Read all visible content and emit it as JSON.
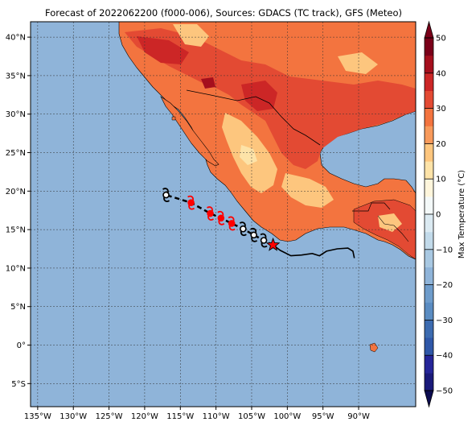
{
  "title": "Forecast of 2022062200 (f000-006), Sources: GDACS (TC track), GFS (Meteo)",
  "map": {
    "lon_range": [
      -136,
      -82
    ],
    "lat_range": [
      -8,
      42
    ],
    "lon_ticks": [
      {
        "value": -135,
        "label": "135°W"
      },
      {
        "value": -130,
        "label": "130°W"
      },
      {
        "value": -125,
        "label": "125°W"
      },
      {
        "value": -120,
        "label": "120°W"
      },
      {
        "value": -115,
        "label": "115°W"
      },
      {
        "value": -110,
        "label": "110°W"
      },
      {
        "value": -105,
        "label": "105°W"
      },
      {
        "value": -100,
        "label": "100°W"
      },
      {
        "value": -95,
        "label": "95°W"
      },
      {
        "value": -90,
        "label": "90°W"
      }
    ],
    "lat_ticks": [
      {
        "value": 40,
        "label": "40°N"
      },
      {
        "value": 35,
        "label": "35°N"
      },
      {
        "value": 30,
        "label": "30°N"
      },
      {
        "value": 25,
        "label": "25°N"
      },
      {
        "value": 20,
        "label": "20°N"
      },
      {
        "value": 15,
        "label": "15°N"
      },
      {
        "value": 10,
        "label": "10°N"
      },
      {
        "value": 5,
        "label": "5°N"
      },
      {
        "value": 0,
        "label": "0°"
      },
      {
        "value": -5,
        "label": "5°S"
      }
    ],
    "ocean_color": "#8fb4d9",
    "gridlines": true
  },
  "colorbar": {
    "label": "Max Temperature (°C)",
    "min": -50,
    "max": 50,
    "ticks": [
      {
        "value": 50,
        "label": "50"
      },
      {
        "value": 40,
        "label": "40"
      },
      {
        "value": 30,
        "label": "30"
      },
      {
        "value": 20,
        "label": "20"
      },
      {
        "value": 10,
        "label": "10"
      },
      {
        "value": 0,
        "label": "0"
      },
      {
        "value": -10,
        "label": "−10"
      },
      {
        "value": -20,
        "label": "−20"
      },
      {
        "value": -30,
        "label": "−30"
      },
      {
        "value": -40,
        "label": "−40"
      },
      {
        "value": -50,
        "label": "−50"
      }
    ],
    "bands": [
      {
        "from": -50,
        "to": -45,
        "color": "#1a1a7a"
      },
      {
        "from": -45,
        "to": -40,
        "color": "#252599"
      },
      {
        "from": -40,
        "to": -35,
        "color": "#2f57a8"
      },
      {
        "from": -35,
        "to": -30,
        "color": "#3c6bb0"
      },
      {
        "from": -30,
        "to": -25,
        "color": "#5a8cc2"
      },
      {
        "from": -25,
        "to": -20,
        "color": "#6e9ccb"
      },
      {
        "from": -20,
        "to": -15,
        "color": "#8fb4d9"
      },
      {
        "from": -15,
        "to": -10,
        "color": "#a8c8e2"
      },
      {
        "from": -10,
        "to": -5,
        "color": "#c2daea"
      },
      {
        "from": -5,
        "to": 0,
        "color": "#dbeaf2"
      },
      {
        "from": 0,
        "to": 5,
        "color": "#f4f9f9"
      },
      {
        "from": 5,
        "to": 10,
        "color": "#fff6dc"
      },
      {
        "from": 10,
        "to": 15,
        "color": "#fde3a8"
      },
      {
        "from": 15,
        "to": 20,
        "color": "#fdc67e"
      },
      {
        "from": 20,
        "to": 25,
        "color": "#f89a5b"
      },
      {
        "from": 25,
        "to": 30,
        "color": "#f3743f"
      },
      {
        "from": 30,
        "to": 35,
        "color": "#e34a33"
      },
      {
        "from": 35,
        "to": 40,
        "color": "#cc2626"
      },
      {
        "from": 40,
        "to": 45,
        "color": "#a50f1d"
      },
      {
        "from": 45,
        "to": 50,
        "color": "#7a0019"
      }
    ]
  },
  "colors": {
    "land_warm": "#f3743f",
    "land_hot": "#e34a33",
    "land_very_hot": "#cc2626",
    "land_extreme": "#a50f1d",
    "land_mild": "#fdc67e",
    "land_cool": "#fde3a8",
    "track_line": "#000000",
    "forecast_symbol": "#ff0000",
    "observed_symbol": "#000000",
    "current_position": "#ff0000"
  },
  "track": {
    "past_line": [
      [
        -102.0,
        13.0
      ],
      [
        -101.0,
        12.3
      ],
      [
        -99.5,
        11.6
      ],
      [
        -98.0,
        11.7
      ],
      [
        -96.5,
        11.9
      ],
      [
        -95.5,
        11.6
      ],
      [
        -94.5,
        12.2
      ],
      [
        -93.0,
        12.5
      ],
      [
        -91.5,
        12.6
      ],
      [
        -90.8,
        12.2
      ],
      [
        -90.6,
        11.3
      ]
    ],
    "forecast_points": [
      {
        "lon": -103.3,
        "lat": 13.6,
        "type": "observed"
      },
      {
        "lon": -104.7,
        "lat": 14.3,
        "type": "observed"
      },
      {
        "lon": -106.2,
        "lat": 15.1,
        "type": "observed"
      },
      {
        "lon": -107.8,
        "lat": 15.8,
        "type": "forecast"
      },
      {
        "lon": -109.3,
        "lat": 16.5,
        "type": "forecast"
      },
      {
        "lon": -110.8,
        "lat": 17.1,
        "type": "forecast"
      },
      {
        "lon": -113.5,
        "lat": 18.5,
        "type": "forecast"
      },
      {
        "lon": -117.0,
        "lat": 19.5,
        "type": "observed"
      }
    ],
    "current_position": {
      "lon": -102.0,
      "lat": 13.0
    }
  }
}
